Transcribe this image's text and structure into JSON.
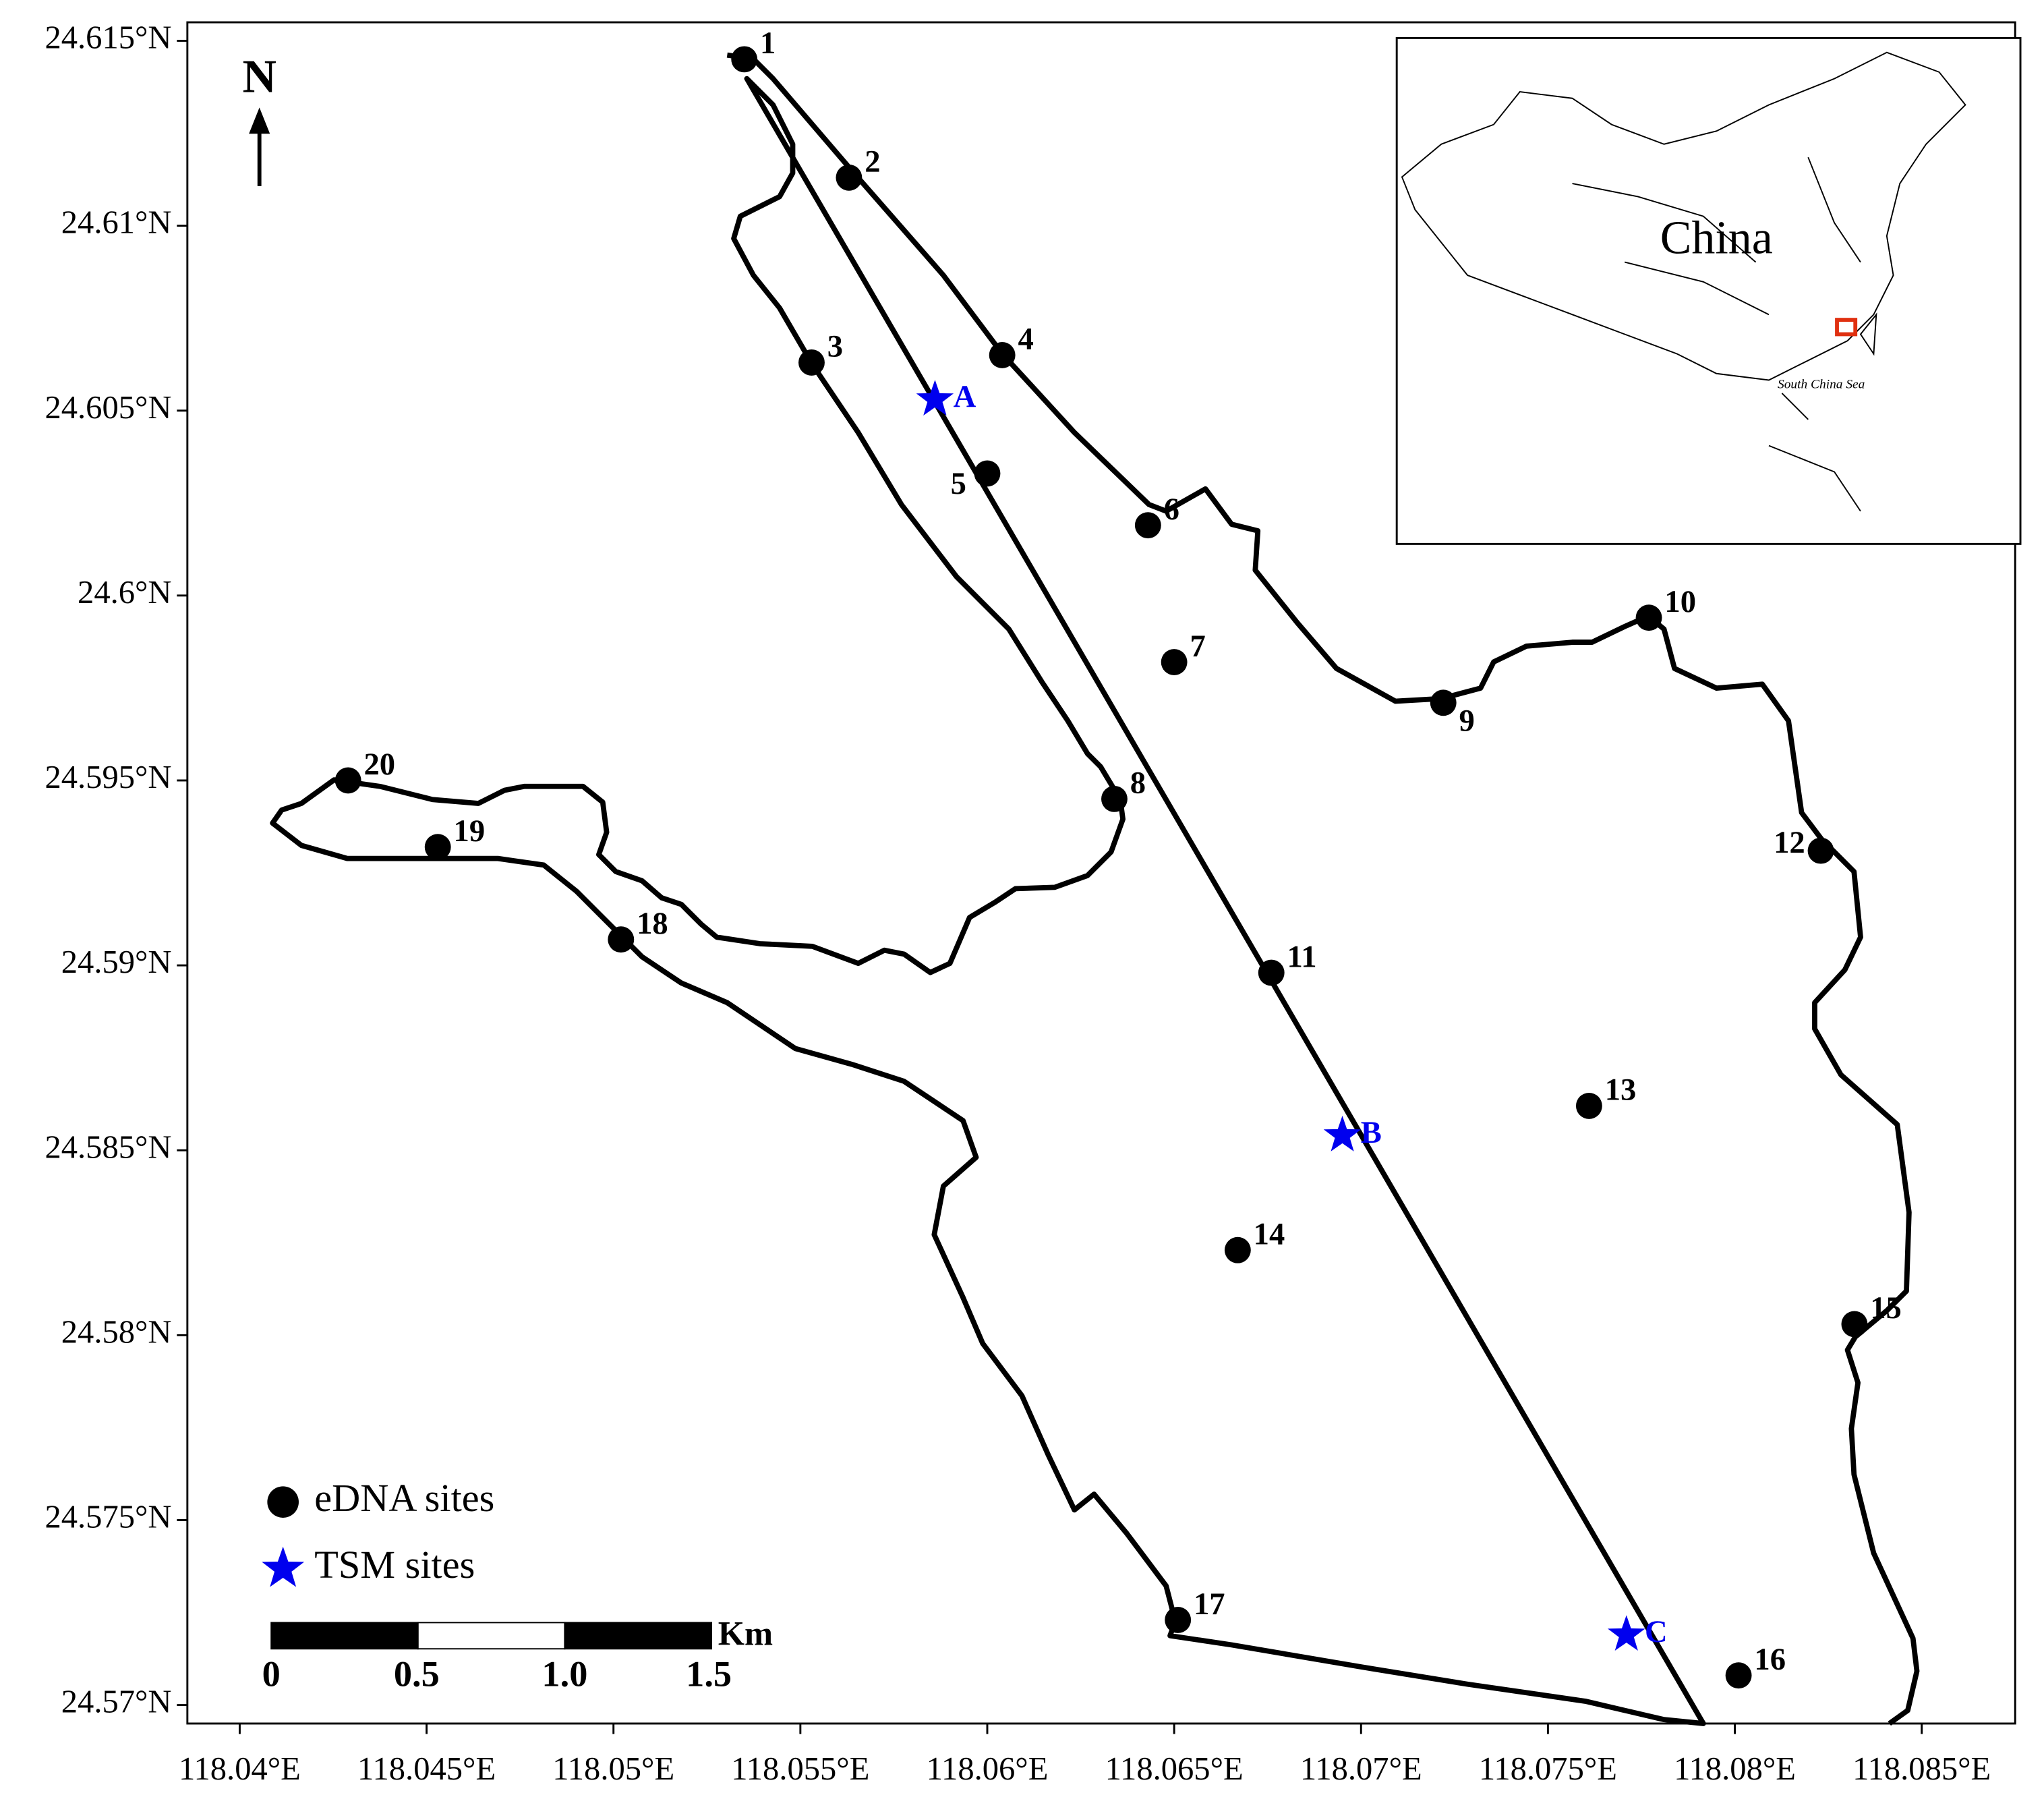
{
  "chart_data": {
    "type": "map",
    "xlim": [
      118.0386,
      118.0875
    ],
    "ylim": [
      24.5695,
      24.6155
    ],
    "xticks": [
      {
        "value": 118.04,
        "label": "118.04°E"
      },
      {
        "value": 118.045,
        "label": "118.045°E"
      },
      {
        "value": 118.05,
        "label": "118.05°E"
      },
      {
        "value": 118.055,
        "label": "118.055°E"
      },
      {
        "value": 118.06,
        "label": "118.06°E"
      },
      {
        "value": 118.065,
        "label": "118.065°E"
      },
      {
        "value": 118.07,
        "label": "118.07°E"
      },
      {
        "value": 118.075,
        "label": "118.075°E"
      },
      {
        "value": 118.08,
        "label": "118.08°E"
      },
      {
        "value": 118.085,
        "label": "118.085°E"
      }
    ],
    "yticks": [
      {
        "value": 24.57,
        "label": "24.57°N"
      },
      {
        "value": 24.575,
        "label": "24.575°N"
      },
      {
        "value": 24.58,
        "label": "24.58°N"
      },
      {
        "value": 24.585,
        "label": "24.585°N"
      },
      {
        "value": 24.59,
        "label": "24.59°N"
      },
      {
        "value": 24.595,
        "label": "24.595°N"
      },
      {
        "value": 24.6,
        "label": "24.6°N"
      },
      {
        "value": 24.605,
        "label": "24.605°N"
      },
      {
        "value": 24.61,
        "label": "24.61°N"
      },
      {
        "value": 24.615,
        "label": "24.615°N"
      }
    ],
    "series": [
      {
        "name": "eDNA sites",
        "color": "#000000",
        "marker": "circle",
        "labels": [
          "1",
          "2",
          "3",
          "4",
          "5",
          "6",
          "7",
          "8",
          "9",
          "10",
          "11",
          "12",
          "13",
          "14",
          "15",
          "16",
          "17",
          "18",
          "19",
          "20"
        ],
        "x": [
          118.0535,
          118.0563,
          118.0553,
          118.0604,
          118.06,
          118.0643,
          118.065,
          118.0634,
          118.0722,
          118.0777,
          118.0676,
          118.0823,
          118.0761,
          118.0667,
          118.0832,
          118.0801,
          118.0651,
          118.0502,
          118.0453,
          118.0429
        ],
        "values": [
          24.6145,
          24.6113,
          24.6063,
          24.6065,
          24.6033,
          24.6019,
          24.5982,
          24.5945,
          24.5971,
          24.5994,
          24.5898,
          24.5931,
          24.5862,
          24.5823,
          24.5803,
          24.5708,
          24.5723,
          24.5907,
          24.5932,
          24.595
        ]
      },
      {
        "name": "TSM sites",
        "color": "#0000ee",
        "marker": "star",
        "labels": [
          "A",
          "B",
          "C"
        ],
        "x": [
          118.0586,
          118.0695,
          118.0771
        ],
        "values": [
          24.6053,
          24.5854,
          24.5719
        ]
      }
    ],
    "north_label": "N",
    "scale_bar": {
      "labels": [
        "0",
        "0.5",
        "1.0",
        "1.5"
      ],
      "unit": "Km"
    },
    "inset": {
      "country": "China",
      "sea": "South China Sea"
    }
  }
}
